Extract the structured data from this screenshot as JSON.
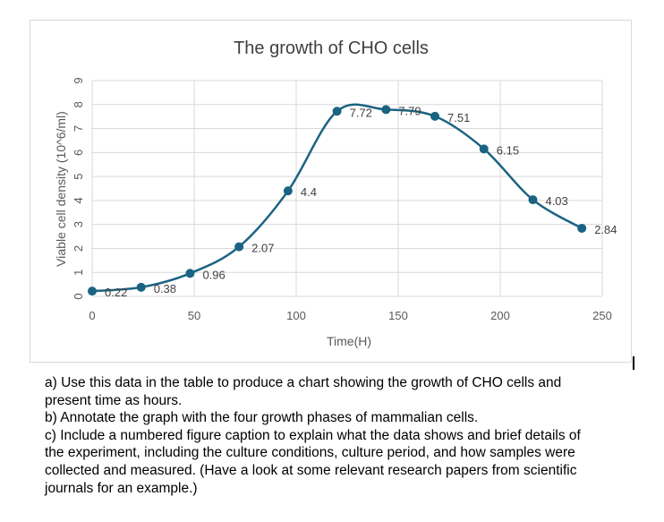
{
  "chart_data": {
    "type": "line",
    "title": "The growth of CHO cells",
    "xlabel": "Time(H)",
    "ylabel": "Viable cell density (10^6/ml)",
    "x": [
      0,
      24,
      48,
      72,
      96,
      120,
      144,
      168,
      192,
      216,
      240
    ],
    "values": [
      0.22,
      0.38,
      0.96,
      2.07,
      4.4,
      7.72,
      7.79,
      7.51,
      6.15,
      4.03,
      2.84
    ],
    "data_labels": [
      "0.22",
      "0.38",
      "0.96",
      "2.07",
      "4.4",
      "7.72",
      "7.79",
      "7.51",
      "6.15",
      "4.03",
      "2.84"
    ],
    "xlim": [
      0,
      250
    ],
    "ylim": [
      0,
      9
    ],
    "xticks": [
      "0",
      "50",
      "100",
      "150",
      "200",
      "250"
    ],
    "yticks": [
      "0",
      "1",
      "2",
      "3",
      "4",
      "5",
      "6",
      "7",
      "8",
      "9"
    ],
    "grid": true,
    "smoothed": true,
    "markers": true,
    "color": "#1b6382"
  },
  "task": {
    "a": "a) Use this data in the table to produce a chart showing the growth of CHO cells and present time as hours.",
    "b": "b) Annotate the graph with the four growth phases of mammalian cells.",
    "c": "c) Include a numbered figure caption to explain what the data shows and brief details of the experiment, including the culture conditions, culture period, and how samples were collected and measured. (Have a look at some relevant research papers from scientific journals for an example.)"
  }
}
